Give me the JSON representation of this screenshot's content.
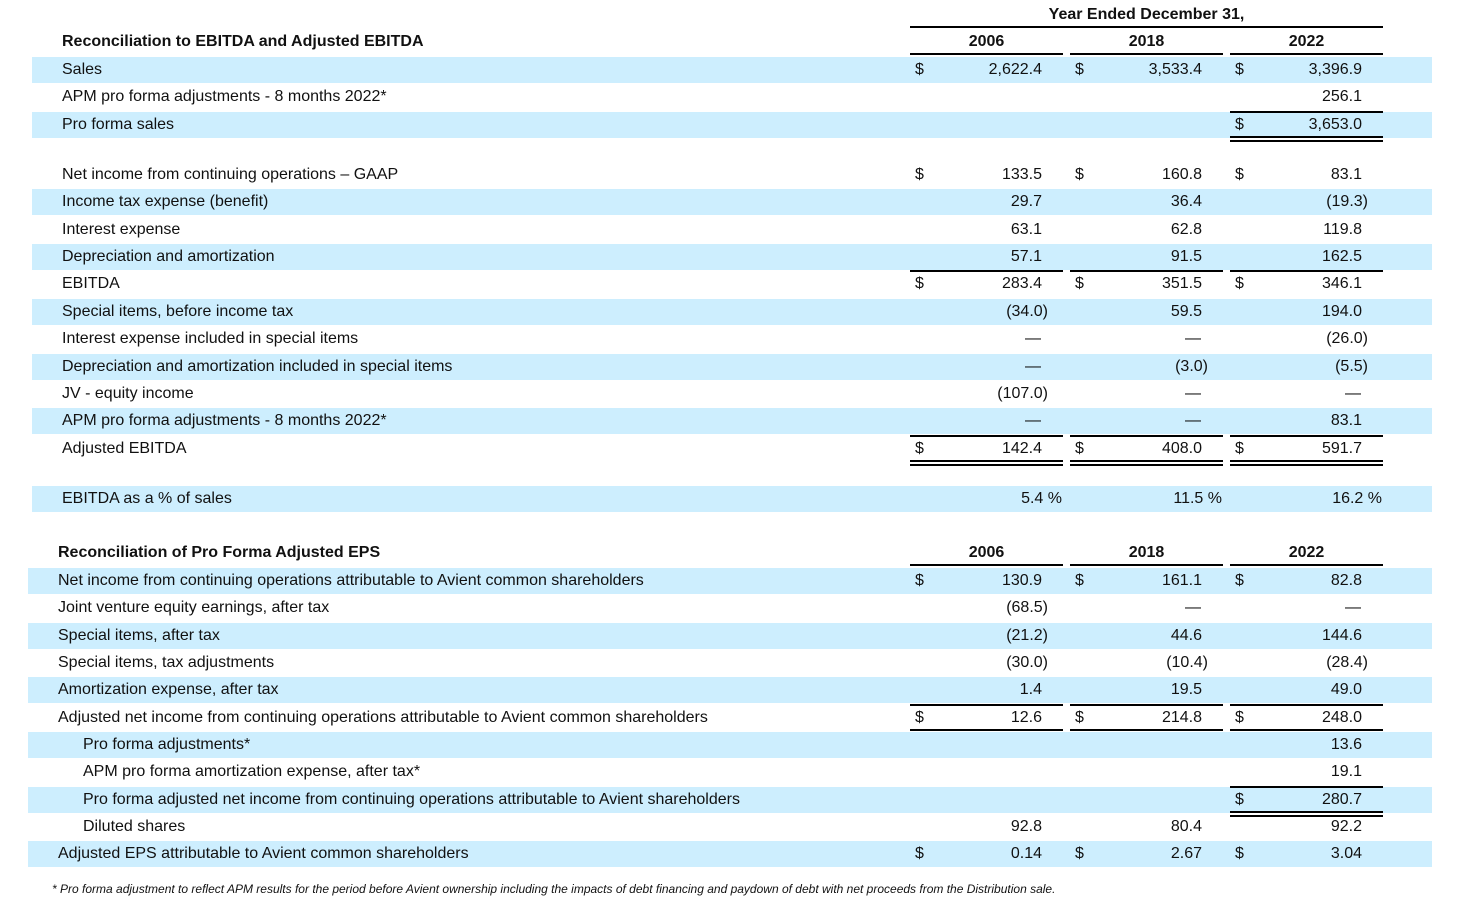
{
  "colors": {
    "band": "#cdeefe"
  },
  "header": {
    "period": "Year Ended December 31,"
  },
  "section1": {
    "title": "Reconciliation to EBITDA and Adjusted EBITDA",
    "years": [
      "2006",
      "2018",
      "2022"
    ],
    "rows": [
      {
        "label": "Sales",
        "cells": [
          [
            "$",
            "2,622.4"
          ],
          [
            "$",
            "3,533.4"
          ],
          [
            "$",
            "3,396.9"
          ]
        ]
      },
      {
        "label": "APM pro forma adjustments - 8 months 2022*",
        "cells": [
          [
            "",
            ""
          ],
          [
            "",
            ""
          ],
          [
            "",
            "256.1"
          ]
        ]
      },
      {
        "label": "Pro forma sales",
        "cells": [
          [
            "",
            ""
          ],
          [
            "",
            ""
          ],
          [
            "$",
            "3,653.0"
          ]
        ],
        "rules": {
          "top": [
            2
          ],
          "double": [
            2
          ]
        }
      },
      {
        "label": "Net income from continuing operations – GAAP",
        "cells": [
          [
            "$",
            "133.5"
          ],
          [
            "$",
            "160.8"
          ],
          [
            "$",
            "83.1"
          ]
        ]
      },
      {
        "label": "Income tax expense (benefit)",
        "cells": [
          [
            "",
            "29.7"
          ],
          [
            "",
            "36.4"
          ],
          [
            "",
            "(19.3)"
          ]
        ]
      },
      {
        "label": "Interest expense",
        "cells": [
          [
            "",
            "63.1"
          ],
          [
            "",
            "62.8"
          ],
          [
            "",
            "119.8"
          ]
        ]
      },
      {
        "label": "Depreciation and amortization",
        "cells": [
          [
            "",
            "57.1"
          ],
          [
            "",
            "91.5"
          ],
          [
            "",
            "162.5"
          ]
        ]
      },
      {
        "label": "EBITDA",
        "cells": [
          [
            "$",
            "283.4"
          ],
          [
            "$",
            "351.5"
          ],
          [
            "$",
            "346.1"
          ]
        ],
        "rules": {
          "top": [
            0,
            1,
            2
          ],
          "double": []
        }
      },
      {
        "label": "Special items, before income tax",
        "cells": [
          [
            "",
            "(34.0)"
          ],
          [
            "",
            "59.5"
          ],
          [
            "",
            "194.0"
          ]
        ]
      },
      {
        "label": "Interest expense included in special items",
        "cells": [
          [
            "",
            "—"
          ],
          [
            "",
            "—"
          ],
          [
            "",
            "(26.0)"
          ]
        ]
      },
      {
        "label": "Depreciation and amortization included in special items",
        "cells": [
          [
            "",
            "—"
          ],
          [
            "",
            "(3.0)"
          ],
          [
            "",
            "(5.5)"
          ]
        ]
      },
      {
        "label": "JV - equity income",
        "cells": [
          [
            "",
            "(107.0)"
          ],
          [
            "",
            "—"
          ],
          [
            "",
            "—"
          ]
        ]
      },
      {
        "label": "APM pro forma adjustments - 8 months 2022*",
        "cells": [
          [
            "",
            "—"
          ],
          [
            "",
            "—"
          ],
          [
            "",
            "83.1"
          ]
        ]
      },
      {
        "label": "Adjusted EBITDA",
        "cells": [
          [
            "$",
            "142.4"
          ],
          [
            "$",
            "408.0"
          ],
          [
            "$",
            "591.7"
          ]
        ],
        "rules": {
          "top": [
            0,
            1,
            2
          ],
          "double": [
            0,
            1,
            2
          ]
        }
      },
      {
        "label": "EBITDA as a % of sales",
        "cells": [
          [
            "",
            "5.4 %"
          ],
          [
            "",
            "11.5 %"
          ],
          [
            "",
            "16.2 %"
          ]
        ]
      }
    ]
  },
  "section2": {
    "title": "Reconciliation of Pro Forma Adjusted EPS",
    "years": [
      "2006",
      "2018",
      "2022"
    ],
    "rows": [
      {
        "label": "Net income from continuing operations attributable to Avient common shareholders",
        "cells": [
          [
            "$",
            "130.9"
          ],
          [
            "$",
            "161.1"
          ],
          [
            "$",
            "82.8"
          ]
        ]
      },
      {
        "label": "Joint venture equity earnings, after tax",
        "cells": [
          [
            "",
            "(68.5)"
          ],
          [
            "",
            "—"
          ],
          [
            "",
            "—"
          ]
        ]
      },
      {
        "label": "Special items, after tax",
        "cells": [
          [
            "",
            "(21.2)"
          ],
          [
            "",
            "44.6"
          ],
          [
            "",
            "144.6"
          ]
        ]
      },
      {
        "label": "Special items, tax adjustments",
        "cells": [
          [
            "",
            "(30.0)"
          ],
          [
            "",
            "(10.4)"
          ],
          [
            "",
            "(28.4)"
          ]
        ]
      },
      {
        "label": "Amortization expense, after tax",
        "cells": [
          [
            "",
            "1.4"
          ],
          [
            "",
            "19.5"
          ],
          [
            "",
            "49.0"
          ]
        ]
      },
      {
        "label": "Adjusted net income from continuing operations attributable to Avient common shareholders",
        "cells": [
          [
            "$",
            "12.6"
          ],
          [
            "$",
            "214.8"
          ],
          [
            "$",
            "248.0"
          ]
        ],
        "rules": {
          "top": [
            0,
            1,
            2
          ],
          "double": [
            0,
            1,
            2
          ]
        }
      },
      {
        "label": "Pro forma adjustments*",
        "indent": true,
        "cells": [
          [
            "",
            ""
          ],
          [
            "",
            ""
          ],
          [
            "",
            "13.6"
          ]
        ]
      },
      {
        "label": "APM pro forma amortization expense, after tax*",
        "indent": true,
        "cells": [
          [
            "",
            ""
          ],
          [
            "",
            ""
          ],
          [
            "",
            "19.1"
          ]
        ]
      },
      {
        "label": "Pro forma adjusted net income from continuing operations attributable to Avient shareholders",
        "indent": true,
        "cells": [
          [
            "",
            ""
          ],
          [
            "",
            ""
          ],
          [
            "$",
            "280.7"
          ]
        ],
        "rules": {
          "top": [
            2
          ],
          "double": [
            2
          ]
        }
      },
      {
        "label": "Diluted shares",
        "indent": true,
        "cells": [
          [
            "",
            "92.8"
          ],
          [
            "",
            "80.4"
          ],
          [
            "",
            "92.2"
          ]
        ]
      },
      {
        "label": "Adjusted EPS attributable to Avient common shareholders",
        "cells": [
          [
            "$",
            "0.14"
          ],
          [
            "$",
            "2.67"
          ],
          [
            "$",
            "3.04"
          ]
        ]
      }
    ]
  },
  "footnote": "* Pro forma adjustment to reflect APM results for the period before Avient ownership including the impacts of debt financing and paydown of debt with net proceeds from the Distribution sale."
}
